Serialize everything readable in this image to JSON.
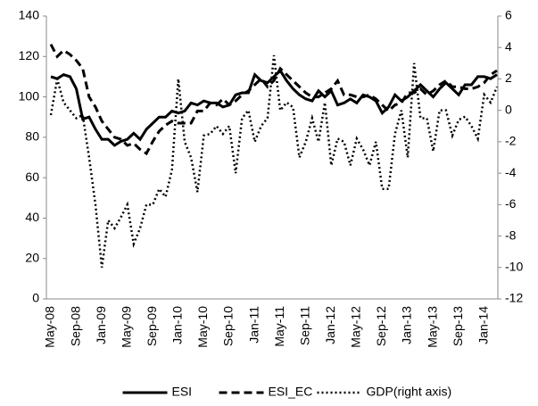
{
  "chart_data": {
    "type": "line",
    "categories": [
      "May-08",
      null,
      null,
      null,
      "Sep-08",
      null,
      null,
      null,
      "Jan-09",
      null,
      null,
      null,
      "May-09",
      null,
      null,
      null,
      "Sep-09",
      null,
      null,
      null,
      "Jan-10",
      null,
      null,
      null,
      "May-10",
      null,
      null,
      null,
      "Sep-10",
      null,
      null,
      null,
      "Jan-11",
      null,
      null,
      null,
      "May-11",
      null,
      null,
      null,
      "Sep-11",
      null,
      null,
      null,
      "Jan-12",
      null,
      null,
      null,
      "May-12",
      null,
      null,
      null,
      "Sep-12",
      null,
      null,
      null,
      "Jan-13",
      null,
      null,
      null,
      "May-13",
      null,
      null,
      null,
      "Sep-13",
      null,
      null,
      null,
      "Jan-14",
      null,
      null
    ],
    "series": [
      {
        "name": "ESI",
        "color": "#000000",
        "style": "solid",
        "values": [
          110,
          109,
          111,
          110,
          104,
          89,
          90,
          84,
          79,
          79,
          76,
          78,
          79,
          82,
          79,
          84,
          87,
          90,
          90,
          93,
          92,
          93,
          97,
          96,
          98,
          97,
          97,
          95,
          96,
          101,
          102,
          102,
          111,
          108,
          107,
          110,
          113,
          108,
          104,
          101,
          99,
          98,
          103,
          100,
          103,
          96,
          97,
          99,
          97,
          101,
          100,
          98,
          92,
          95,
          101,
          98,
          100,
          103,
          106,
          103,
          100,
          104,
          107,
          104,
          101,
          106,
          106,
          110,
          110,
          109,
          111
        ]
      },
      {
        "name": "ESI_EC",
        "color": "#000000",
        "style": "dashed",
        "values": [
          126,
          120,
          123,
          121,
          118,
          114,
          100,
          95,
          88,
          84,
          80,
          79,
          76,
          77,
          74,
          72,
          78,
          83,
          86,
          88,
          87,
          87,
          87,
          93,
          93,
          97,
          96,
          99,
          96,
          98,
          101,
          103,
          106,
          109,
          105,
          108,
          114,
          111,
          108,
          105,
          102,
          100,
          100,
          102,
          104,
          108,
          101,
          101,
          100,
          100,
          101,
          99,
          96,
          93,
          96,
          97,
          102,
          102,
          104,
          101,
          103,
          106,
          108,
          105,
          105,
          104,
          104,
          105,
          107,
          111,
          113
        ]
      },
      {
        "name": "GDP(right axis)",
        "color": "#000000",
        "style": "dotted",
        "axis": "y2",
        "values": [
          -0.3,
          2,
          0.5,
          0,
          -0.5,
          -0.3,
          -3,
          -6,
          -10,
          -7,
          -7.5,
          -6.8,
          -6,
          -8.5,
          -7.5,
          -6,
          -6,
          -5,
          -5.5,
          -3.8,
          2,
          -2,
          -3,
          -5.2,
          -1.6,
          -1.5,
          -1,
          -1.5,
          -1,
          -4,
          -0.5,
          0,
          -2,
          -1,
          -0.5,
          3.5,
          0,
          0.5,
          0.2,
          -3,
          -2,
          -0.5,
          -2,
          0.5,
          -3.5,
          -1.8,
          -2,
          -3.5,
          -1.8,
          -2.5,
          -3.5,
          -2,
          -5,
          -5,
          -1.5,
          0,
          -3,
          3,
          -0.5,
          -0.5,
          -2.6,
          0,
          0,
          -1.6,
          -0.6,
          -0.4,
          -1,
          -1.8,
          1,
          0.5,
          1.5
        ]
      }
    ],
    "ylim": [
      0,
      140
    ],
    "yticks": [
      0,
      20,
      40,
      60,
      80,
      100,
      120,
      140
    ],
    "y2lim": [
      -12,
      6
    ],
    "y2ticks": [
      -12,
      -10,
      -8,
      -6,
      -4,
      -2,
      0,
      2,
      4,
      6
    ],
    "grid": false,
    "legend": "bottom"
  }
}
